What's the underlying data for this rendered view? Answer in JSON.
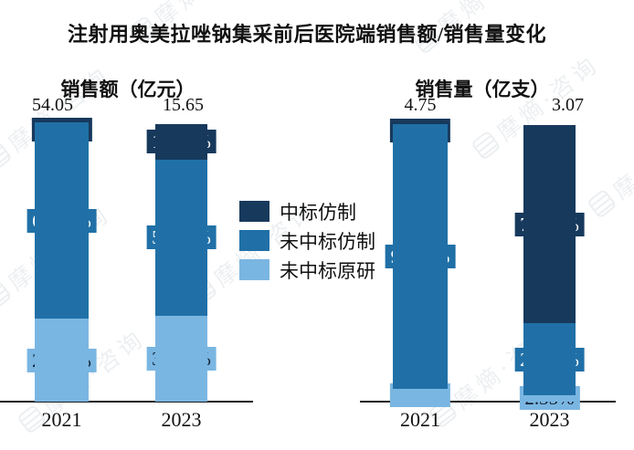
{
  "title": "注射用奥美拉唑钠集采前后医院端销售额/销售量变化",
  "watermark": {
    "text": "摩熵·咨询"
  },
  "colors": {
    "win_generic": "#17395C",
    "lose_generic": "#2070A7",
    "lose_original": "#7AB6E2",
    "axis": "#1b1b1b",
    "label_text_light": "#ffffff",
    "label_text_dark": "#0e1c2a"
  },
  "legend": {
    "items": [
      {
        "label": "中标仿制",
        "color_key": "win_generic"
      },
      {
        "label": "未中标仿制",
        "color_key": "lose_generic"
      },
      {
        "label": "未中标原研",
        "color_key": "lose_original"
      }
    ]
  },
  "chart_data": [
    {
      "type": "bar",
      "subtype": "stacked-percent-column",
      "title": "销售额（亿元）",
      "unit": "亿元",
      "categories": [
        "2021",
        "2023"
      ],
      "totals": [
        "54.05",
        "15.65"
      ],
      "series": [
        {
          "name": "中标仿制",
          "color_key": "win_generic",
          "values": [
            0.81,
            12.8
          ],
          "labels": [
            "0.81%",
            "12.80%"
          ]
        },
        {
          "name": "未中标仿制",
          "color_key": "lose_generic",
          "values": [
            69.75,
            56.22
          ],
          "labels": [
            "69.75%",
            "56.22%"
          ]
        },
        {
          "name": "未中标原研",
          "color_key": "lose_original",
          "values": [
            29.44,
            30.97
          ],
          "labels": [
            "29.44%",
            "30.97%"
          ]
        }
      ]
    },
    {
      "type": "bar",
      "subtype": "stacked-percent-column",
      "title": "销售量（亿支）",
      "unit": "亿支",
      "categories": [
        "2021",
        "2023"
      ],
      "totals": [
        "4.75",
        "3.07"
      ],
      "series": [
        {
          "name": "中标仿制",
          "color_key": "win_generic",
          "values": [
            0.88,
            71.66
          ],
          "labels": [
            "0.88%",
            "71.66%"
          ]
        },
        {
          "name": "未中标仿制",
          "color_key": "lose_generic",
          "values": [
            94.67,
            25.98
          ],
          "labels": [
            "94.67%",
            "25.98%"
          ]
        },
        {
          "name": "未中标原研",
          "color_key": "lose_original",
          "values": [
            4.45,
            2.35
          ],
          "labels": [
            "4.45%",
            "2.35%"
          ]
        }
      ]
    }
  ]
}
